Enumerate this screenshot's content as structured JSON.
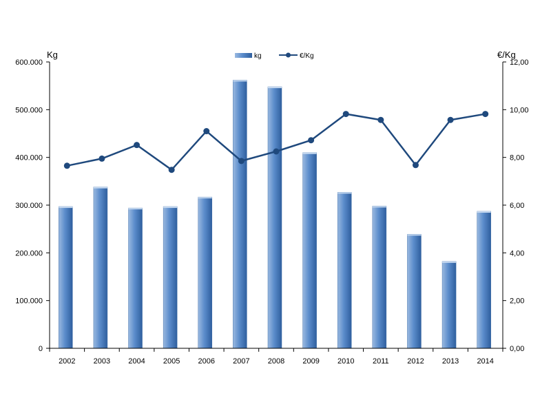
{
  "chart_data": {
    "type": "bar",
    "categories": [
      "2002",
      "2003",
      "2004",
      "2005",
      "2006",
      "2007",
      "2008",
      "2009",
      "2010",
      "2011",
      "2012",
      "2013",
      "2014"
    ],
    "series": [
      {
        "name": "kg",
        "type": "bar",
        "axis": "left",
        "color": "#4f81bd",
        "values": [
          297000,
          338000,
          294000,
          297000,
          317000,
          562000,
          548000,
          410000,
          327000,
          298000,
          239000,
          182000,
          287000
        ]
      },
      {
        "name": "€/Kg",
        "type": "line",
        "axis": "right",
        "color": "#1f497d",
        "values": [
          7.65,
          7.95,
          8.52,
          7.48,
          9.1,
          7.85,
          8.25,
          8.72,
          9.82,
          9.57,
          7.68,
          9.57,
          9.82
        ]
      }
    ],
    "left_axis": {
      "title": "Kg",
      "ylim": [
        0,
        600000
      ],
      "tick_labels": [
        "0",
        "100.000",
        "200.000",
        "300.000",
        "400.000",
        "500.000",
        "600.000"
      ]
    },
    "right_axis": {
      "title": "€/Kg",
      "ylim": [
        0,
        12
      ],
      "tick_labels": [
        "0,00",
        "2,00",
        "4,00",
        "6,00",
        "8,00",
        "10,00",
        "12,00"
      ]
    },
    "legend_position": "top-center",
    "grid": false
  }
}
